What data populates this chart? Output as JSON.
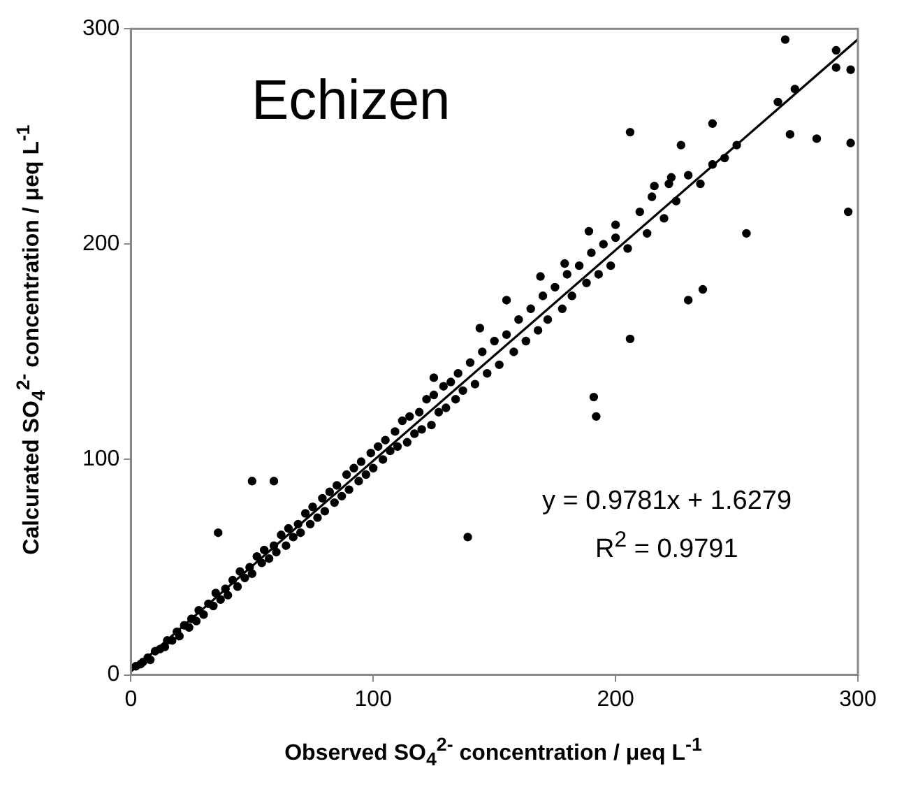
{
  "chart_data": {
    "type": "scatter",
    "xlabel": "Observed SO$_{4}$$^{2-}$ concentration / μeq  L$^{-1}$",
    "ylabel": "Calcurated SO$_{4}$$^{2-}$ concentration / μeq  L$^{-1}$",
    "annotations": [
      "Echizen",
      "y = 0.9781x + 1.6279",
      "R$^{2}$ = 0.9791"
    ],
    "xlim": [
      0,
      300
    ],
    "ylim": [
      0,
      300
    ],
    "xticks": [
      0,
      100,
      200,
      300
    ],
    "yticks": [
      0,
      100,
      200,
      300
    ],
    "grid": false,
    "legend": false,
    "series": [
      {
        "marker": "circle",
        "color": "#000000",
        "x": [
          2,
          4,
          5,
          7,
          8,
          10,
          12,
          14,
          15,
          17,
          19,
          20,
          22,
          24,
          25,
          27,
          28,
          30,
          32,
          34,
          35,
          37,
          39,
          40,
          42,
          44,
          45,
          47,
          49,
          50,
          52,
          54,
          55,
          57,
          59,
          60,
          62,
          64,
          65,
          67,
          69,
          70,
          72,
          74,
          75,
          77,
          79,
          80,
          82,
          84,
          85,
          87,
          89,
          90,
          92,
          94,
          95,
          97,
          99,
          100,
          102,
          104,
          105,
          107,
          109,
          110,
          112,
          114,
          115,
          117,
          119,
          120,
          122,
          124,
          125,
          127,
          129,
          130,
          132,
          134,
          135,
          137,
          140,
          142,
          145,
          147,
          150,
          152,
          155,
          158,
          160,
          163,
          165,
          168,
          170,
          172,
          175,
          178,
          180,
          182,
          185,
          188,
          190,
          193,
          195,
          198,
          200,
          205,
          210,
          213,
          215,
          220,
          222,
          225,
          230,
          235,
          240,
          245,
          250,
          169,
          179,
          189,
          200,
          216,
          223,
          144,
          155,
          125,
          270,
          291,
          291,
          297,
          274,
          267,
          272,
          283,
          297,
          296,
          206,
          240,
          227,
          254,
          230,
          236,
          206,
          191,
          192,
          139,
          50,
          59,
          36
        ],
        "values": [
          4,
          5,
          6,
          8,
          7,
          11,
          12,
          13,
          16,
          16,
          20,
          18,
          23,
          22,
          26,
          25,
          30,
          28,
          33,
          32,
          38,
          35,
          40,
          37,
          44,
          41,
          48,
          45,
          50,
          47,
          55,
          52,
          58,
          54,
          60,
          57,
          65,
          60,
          68,
          64,
          70,
          66,
          75,
          70,
          78,
          73,
          82,
          76,
          85,
          80,
          88,
          83,
          93,
          86,
          96,
          90,
          99,
          93,
          103,
          96,
          106,
          100,
          109,
          104,
          113,
          106,
          118,
          108,
          120,
          112,
          122,
          114,
          128,
          116,
          130,
          122,
          134,
          124,
          136,
          128,
          140,
          132,
          145,
          135,
          150,
          140,
          155,
          144,
          158,
          150,
          165,
          155,
          170,
          160,
          176,
          165,
          180,
          170,
          186,
          176,
          190,
          182,
          196,
          186,
          200,
          190,
          203,
          198,
          215,
          205,
          222,
          212,
          228,
          220,
          232,
          228,
          237,
          240,
          246,
          185,
          191,
          206,
          209,
          227,
          231,
          161,
          174,
          138,
          295,
          290,
          282,
          281,
          272,
          266,
          251,
          249,
          247,
          215,
          252,
          256,
          246,
          205,
          174,
          179,
          156,
          129,
          120,
          64,
          90,
          90,
          66
        ]
      },
      {
        "type": "line",
        "marker": "none",
        "color": "#000000",
        "x": [
          0,
          300
        ],
        "values": [
          1.6,
          295.1
        ]
      }
    ]
  }
}
